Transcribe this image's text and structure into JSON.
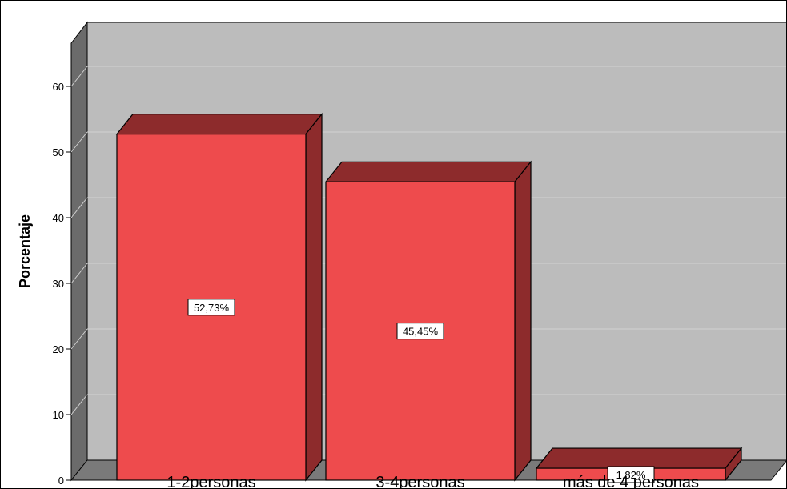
{
  "chart_data": {
    "type": "bar",
    "title": "",
    "xlabel": "",
    "ylabel": "Porcentaje",
    "ylim": [
      0,
      60
    ],
    "yticks": [
      0,
      10,
      20,
      30,
      40,
      50,
      60
    ],
    "ytick_labels": [
      "0",
      "10",
      "20",
      "30",
      "40",
      "50",
      "60"
    ],
    "grid": true,
    "three_d": true,
    "categories": [
      "1-2personas",
      "3-4personas",
      "más de 4 personas"
    ],
    "values": [
      52.73,
      45.45,
      1.82
    ],
    "data_labels": [
      "52,73%",
      "45,45%",
      "1,82%"
    ],
    "colors": {
      "bar_front": "#ee4b4d",
      "bar_side": "#8d2b2c",
      "plot_back": "#bcbcbc",
      "wall_left": "#6b6b6b",
      "floor": "#7a7a7a"
    }
  }
}
